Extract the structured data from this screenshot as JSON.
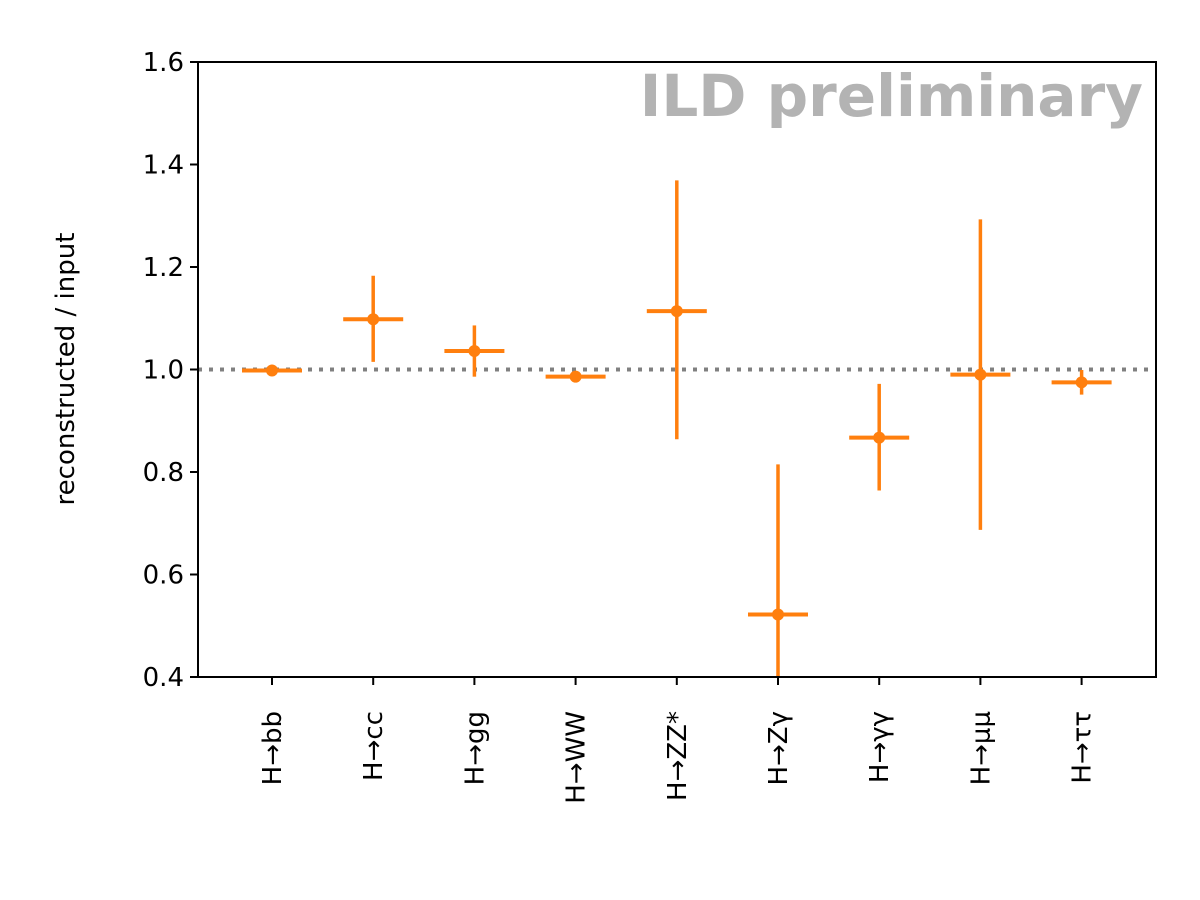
{
  "chart_data": {
    "type": "scatter",
    "watermark": "ILD preliminary",
    "ylabel": "reconstructed / input",
    "xlabel": "",
    "ylim": [
      0.4,
      1.6
    ],
    "yticks": [
      "0.4",
      "0.6",
      "0.8",
      "1.0",
      "1.2",
      "1.4",
      "1.6"
    ],
    "reference_line": {
      "y": 1.0,
      "style": "dotted",
      "color": "#808080"
    },
    "grid": false,
    "series_color": "#ff7f0e",
    "categories": [
      "H→bb",
      "H→cc",
      "H→gg",
      "H→WW",
      "H→ZZ*",
      "H→Zγ",
      "H→γγ",
      "H→μμ",
      "H→ττ"
    ],
    "points": [
      {
        "category": "H→bb",
        "value": 0.998,
        "err_low": 0.005,
        "err_high": 0.005
      },
      {
        "category": "H→cc",
        "value": 1.098,
        "err_low": 0.083,
        "err_high": 0.085
      },
      {
        "category": "H→gg",
        "value": 1.036,
        "err_low": 0.05,
        "err_high": 0.05
      },
      {
        "category": "H→WW",
        "value": 0.986,
        "err_low": 0.008,
        "err_high": 0.008
      },
      {
        "category": "H→ZZ*",
        "value": 1.114,
        "err_low": 0.25,
        "err_high": 0.255
      },
      {
        "category": "H→Zγ",
        "value": 0.522,
        "err_low": 0.295,
        "err_high": 0.293
      },
      {
        "category": "H→γγ",
        "value": 0.867,
        "err_low": 0.103,
        "err_high": 0.105
      },
      {
        "category": "H→μμ",
        "value": 0.99,
        "err_low": 0.303,
        "err_high": 0.303
      },
      {
        "category": "H→ττ",
        "value": 0.975,
        "err_low": 0.024,
        "err_high": 0.024
      }
    ]
  }
}
